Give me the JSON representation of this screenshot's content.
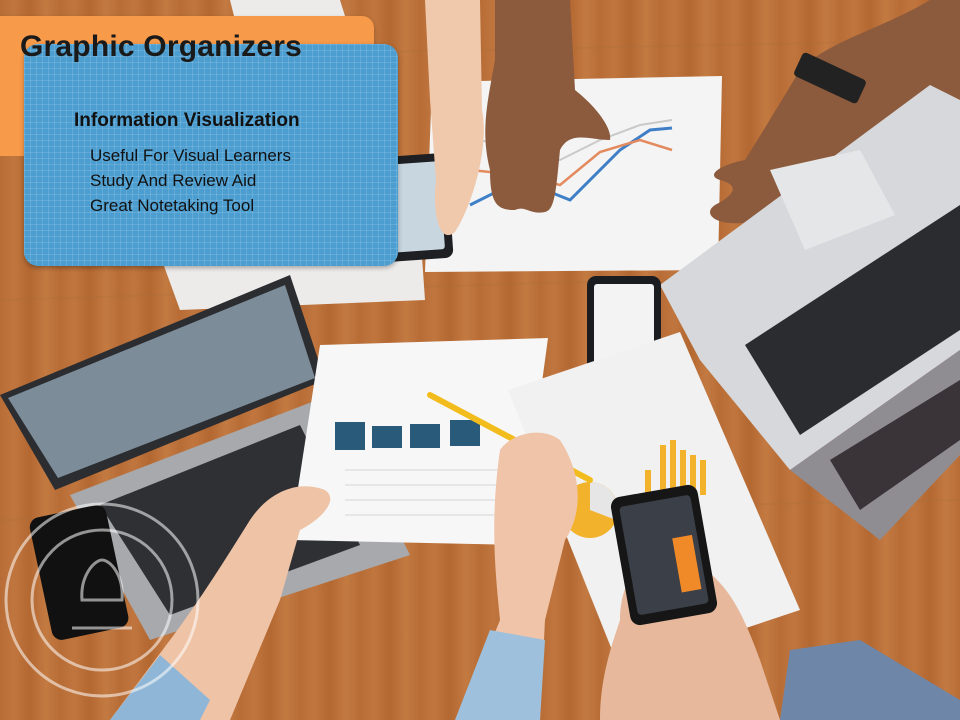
{
  "slide": {
    "title": "Graphic Organizers",
    "box": {
      "heading": "Information Visualization",
      "items": [
        "Useful For Visual Learners",
        "Study And Review Aid",
        "Great Notetaking Tool"
      ]
    },
    "colors": {
      "title_bar": "#f79a4a",
      "info_box": "#4d9ed0"
    }
  }
}
